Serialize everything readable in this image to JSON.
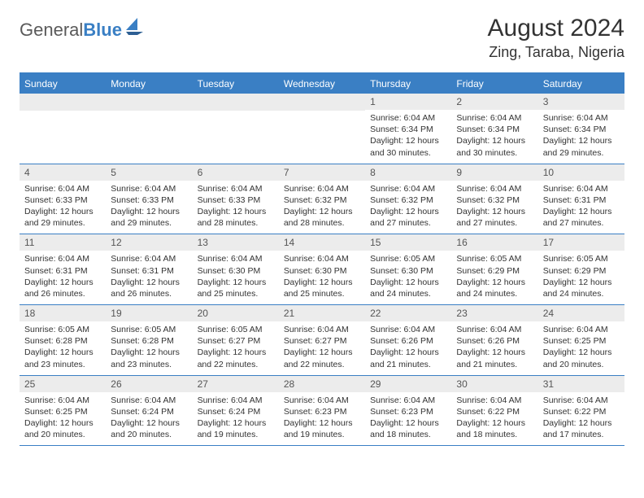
{
  "logo": {
    "text1": "General",
    "text2": "Blue"
  },
  "title": "August 2024",
  "location": "Zing, Taraba, Nigeria",
  "weekdays": [
    "Sunday",
    "Monday",
    "Tuesday",
    "Wednesday",
    "Thursday",
    "Friday",
    "Saturday"
  ],
  "colors": {
    "accent": "#3a7fc4",
    "header_text": "#333333",
    "daynum_bg": "#ececec",
    "body_text": "#333333"
  },
  "weeks": [
    [
      {
        "n": "",
        "sr": "",
        "ss": "",
        "dl": ""
      },
      {
        "n": "",
        "sr": "",
        "ss": "",
        "dl": ""
      },
      {
        "n": "",
        "sr": "",
        "ss": "",
        "dl": ""
      },
      {
        "n": "",
        "sr": "",
        "ss": "",
        "dl": ""
      },
      {
        "n": "1",
        "sr": "Sunrise: 6:04 AM",
        "ss": "Sunset: 6:34 PM",
        "dl": "Daylight: 12 hours and 30 minutes."
      },
      {
        "n": "2",
        "sr": "Sunrise: 6:04 AM",
        "ss": "Sunset: 6:34 PM",
        "dl": "Daylight: 12 hours and 30 minutes."
      },
      {
        "n": "3",
        "sr": "Sunrise: 6:04 AM",
        "ss": "Sunset: 6:34 PM",
        "dl": "Daylight: 12 hours and 29 minutes."
      }
    ],
    [
      {
        "n": "4",
        "sr": "Sunrise: 6:04 AM",
        "ss": "Sunset: 6:33 PM",
        "dl": "Daylight: 12 hours and 29 minutes."
      },
      {
        "n": "5",
        "sr": "Sunrise: 6:04 AM",
        "ss": "Sunset: 6:33 PM",
        "dl": "Daylight: 12 hours and 29 minutes."
      },
      {
        "n": "6",
        "sr": "Sunrise: 6:04 AM",
        "ss": "Sunset: 6:33 PM",
        "dl": "Daylight: 12 hours and 28 minutes."
      },
      {
        "n": "7",
        "sr": "Sunrise: 6:04 AM",
        "ss": "Sunset: 6:32 PM",
        "dl": "Daylight: 12 hours and 28 minutes."
      },
      {
        "n": "8",
        "sr": "Sunrise: 6:04 AM",
        "ss": "Sunset: 6:32 PM",
        "dl": "Daylight: 12 hours and 27 minutes."
      },
      {
        "n": "9",
        "sr": "Sunrise: 6:04 AM",
        "ss": "Sunset: 6:32 PM",
        "dl": "Daylight: 12 hours and 27 minutes."
      },
      {
        "n": "10",
        "sr": "Sunrise: 6:04 AM",
        "ss": "Sunset: 6:31 PM",
        "dl": "Daylight: 12 hours and 27 minutes."
      }
    ],
    [
      {
        "n": "11",
        "sr": "Sunrise: 6:04 AM",
        "ss": "Sunset: 6:31 PM",
        "dl": "Daylight: 12 hours and 26 minutes."
      },
      {
        "n": "12",
        "sr": "Sunrise: 6:04 AM",
        "ss": "Sunset: 6:31 PM",
        "dl": "Daylight: 12 hours and 26 minutes."
      },
      {
        "n": "13",
        "sr": "Sunrise: 6:04 AM",
        "ss": "Sunset: 6:30 PM",
        "dl": "Daylight: 12 hours and 25 minutes."
      },
      {
        "n": "14",
        "sr": "Sunrise: 6:04 AM",
        "ss": "Sunset: 6:30 PM",
        "dl": "Daylight: 12 hours and 25 minutes."
      },
      {
        "n": "15",
        "sr": "Sunrise: 6:05 AM",
        "ss": "Sunset: 6:30 PM",
        "dl": "Daylight: 12 hours and 24 minutes."
      },
      {
        "n": "16",
        "sr": "Sunrise: 6:05 AM",
        "ss": "Sunset: 6:29 PM",
        "dl": "Daylight: 12 hours and 24 minutes."
      },
      {
        "n": "17",
        "sr": "Sunrise: 6:05 AM",
        "ss": "Sunset: 6:29 PM",
        "dl": "Daylight: 12 hours and 24 minutes."
      }
    ],
    [
      {
        "n": "18",
        "sr": "Sunrise: 6:05 AM",
        "ss": "Sunset: 6:28 PM",
        "dl": "Daylight: 12 hours and 23 minutes."
      },
      {
        "n": "19",
        "sr": "Sunrise: 6:05 AM",
        "ss": "Sunset: 6:28 PM",
        "dl": "Daylight: 12 hours and 23 minutes."
      },
      {
        "n": "20",
        "sr": "Sunrise: 6:05 AM",
        "ss": "Sunset: 6:27 PM",
        "dl": "Daylight: 12 hours and 22 minutes."
      },
      {
        "n": "21",
        "sr": "Sunrise: 6:04 AM",
        "ss": "Sunset: 6:27 PM",
        "dl": "Daylight: 12 hours and 22 minutes."
      },
      {
        "n": "22",
        "sr": "Sunrise: 6:04 AM",
        "ss": "Sunset: 6:26 PM",
        "dl": "Daylight: 12 hours and 21 minutes."
      },
      {
        "n": "23",
        "sr": "Sunrise: 6:04 AM",
        "ss": "Sunset: 6:26 PM",
        "dl": "Daylight: 12 hours and 21 minutes."
      },
      {
        "n": "24",
        "sr": "Sunrise: 6:04 AM",
        "ss": "Sunset: 6:25 PM",
        "dl": "Daylight: 12 hours and 20 minutes."
      }
    ],
    [
      {
        "n": "25",
        "sr": "Sunrise: 6:04 AM",
        "ss": "Sunset: 6:25 PM",
        "dl": "Daylight: 12 hours and 20 minutes."
      },
      {
        "n": "26",
        "sr": "Sunrise: 6:04 AM",
        "ss": "Sunset: 6:24 PM",
        "dl": "Daylight: 12 hours and 20 minutes."
      },
      {
        "n": "27",
        "sr": "Sunrise: 6:04 AM",
        "ss": "Sunset: 6:24 PM",
        "dl": "Daylight: 12 hours and 19 minutes."
      },
      {
        "n": "28",
        "sr": "Sunrise: 6:04 AM",
        "ss": "Sunset: 6:23 PM",
        "dl": "Daylight: 12 hours and 19 minutes."
      },
      {
        "n": "29",
        "sr": "Sunrise: 6:04 AM",
        "ss": "Sunset: 6:23 PM",
        "dl": "Daylight: 12 hours and 18 minutes."
      },
      {
        "n": "30",
        "sr": "Sunrise: 6:04 AM",
        "ss": "Sunset: 6:22 PM",
        "dl": "Daylight: 12 hours and 18 minutes."
      },
      {
        "n": "31",
        "sr": "Sunrise: 6:04 AM",
        "ss": "Sunset: 6:22 PM",
        "dl": "Daylight: 12 hours and 17 minutes."
      }
    ]
  ]
}
